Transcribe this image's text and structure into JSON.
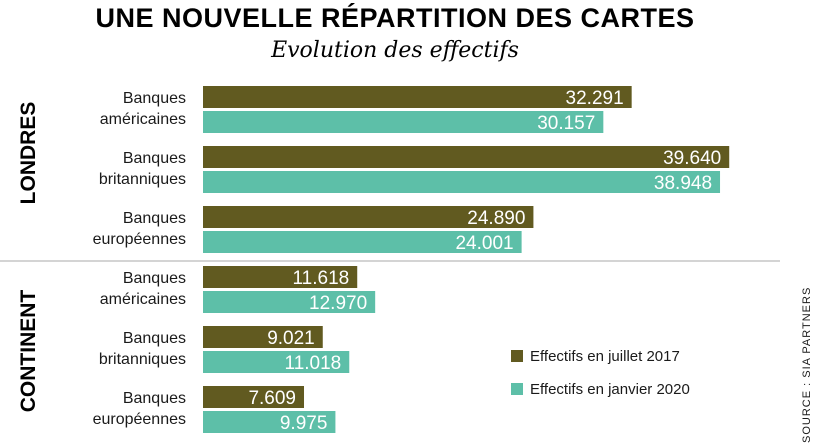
{
  "colors": {
    "series_2017": "#615a20",
    "series_2020": "#5dbfa8",
    "divider": "#aaaaaa"
  },
  "chart_data": {
    "type": "bar",
    "orientation": "horizontal",
    "title": "UNE NOUVELLE RÉPARTITION DES CARTES",
    "subtitle": "Evolution des effectifs",
    "source": "SOURCE : SIA PARTNERS",
    "groups": [
      {
        "label": "LONDRES",
        "categories": [
          {
            "line1": "Banques",
            "line2": "américaines",
            "values": [
              32291,
              30157
            ],
            "labels": [
              "32.291",
              "30.157"
            ]
          },
          {
            "line1": "Banques",
            "line2": "britanniques",
            "values": [
              39640,
              38948
            ],
            "labels": [
              "39.640",
              "38.948"
            ]
          },
          {
            "line1": "Banques",
            "line2": "européennes",
            "values": [
              24890,
              24001
            ],
            "labels": [
              "24.890",
              "24.001"
            ]
          }
        ]
      },
      {
        "label": "CONTINENT",
        "categories": [
          {
            "line1": "Banques",
            "line2": "américaines",
            "values": [
              11618,
              12970
            ],
            "labels": [
              "11.618",
              "12.970"
            ]
          },
          {
            "line1": "Banques",
            "line2": "britanniques",
            "values": [
              9021,
              11018
            ],
            "labels": [
              "9.021",
              "11.018"
            ]
          },
          {
            "line1": "Banques",
            "line2": "européennes",
            "values": [
              7609,
              9975
            ],
            "labels": [
              "7.609",
              "9.975"
            ]
          }
        ]
      }
    ],
    "series": [
      {
        "name": "Effectifs en juillet 2017",
        "color": "#615a20"
      },
      {
        "name": "Effectifs en janvier 2020",
        "color": "#5dbfa8"
      }
    ],
    "xlim": [
      0,
      40000
    ],
    "grid": false,
    "legend_position": "bottom-right"
  }
}
